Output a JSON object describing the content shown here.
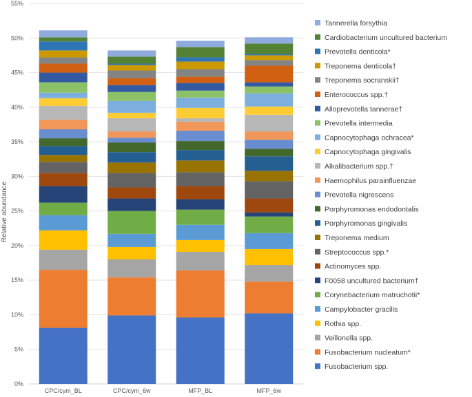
{
  "chart_data": {
    "type": "stacked_bar",
    "ylabel": "Relative abundance",
    "ylim": [
      0,
      55
    ],
    "yticks": [
      0,
      5,
      10,
      15,
      20,
      25,
      30,
      35,
      40,
      45,
      50,
      55
    ],
    "ytick_labels": [
      "0%",
      "5%",
      "10%",
      "15%",
      "20%",
      "25%",
      "30%",
      "35%",
      "40%",
      "45%",
      "50%",
      "55%"
    ],
    "categories": [
      "CPC/cym_BL",
      "CPC/cym_6w",
      "MFP_BL",
      "MFP_6w"
    ],
    "series": [
      {
        "name": "Fusobacterium spp.",
        "color": "#4472C4",
        "values": [
          8.1,
          9.9,
          9.6,
          10.2
        ]
      },
      {
        "name": "Fusobacterium nucleatum*",
        "color": "#ED7D31",
        "values": [
          8.4,
          5.5,
          6.8,
          4.6
        ]
      },
      {
        "name": "Veillonella spp.",
        "color": "#A5A5A5",
        "values": [
          2.9,
          2.6,
          2.7,
          2.4
        ]
      },
      {
        "name": "Rothia spp.",
        "color": "#FFC000",
        "values": [
          2.8,
          1.8,
          1.7,
          2.3
        ]
      },
      {
        "name": "Campylobacter gracilis",
        "color": "#5B9BD5",
        "values": [
          2.2,
          1.9,
          2.2,
          2.3
        ]
      },
      {
        "name": "Corynebacterium matruchotii*",
        "color": "#70AD47",
        "values": [
          1.8,
          3.3,
          2.2,
          2.4
        ]
      },
      {
        "name": "F0058 uncultured bacterium†",
        "color": "#264478",
        "values": [
          2.4,
          1.8,
          1.5,
          0.6
        ]
      },
      {
        "name": "Actinomyces spp.",
        "color": "#9E480E",
        "values": [
          1.9,
          1.6,
          1.9,
          2.0
        ]
      },
      {
        "name": "Streptococcus spp.*",
        "color": "#636363",
        "values": [
          1.6,
          2.1,
          2.0,
          2.5
        ]
      },
      {
        "name": "Treponema medium",
        "color": "#997300",
        "values": [
          1.0,
          1.5,
          1.7,
          1.5
        ]
      },
      {
        "name": "Porphyromonas gingivalis",
        "color": "#255E91",
        "values": [
          1.3,
          1.5,
          1.5,
          2.1
        ]
      },
      {
        "name": "Porphyromonas endodontalis",
        "color": "#43682B",
        "values": [
          1.1,
          1.4,
          1.3,
          1.1
        ]
      },
      {
        "name": "Prevotella nigrescens",
        "color": "#698ED0",
        "values": [
          1.3,
          0.7,
          1.5,
          1.3
        ]
      },
      {
        "name": "Haemophilus parainfluenzae",
        "color": "#F1975A",
        "values": [
          1.4,
          0.9,
          1.3,
          1.2
        ]
      },
      {
        "name": "Alkalibacterium spp.†",
        "color": "#B7B7B7",
        "values": [
          2.0,
          1.9,
          0.5,
          2.4
        ]
      },
      {
        "name": "Capnocytophaga gingivalis",
        "color": "#FFCD33",
        "values": [
          1.1,
          0.8,
          1.5,
          1.2
        ]
      },
      {
        "name": "Capnocytophaga ochracea*",
        "color": "#7CAFDD",
        "values": [
          0.8,
          1.7,
          1.5,
          1.9
        ]
      },
      {
        "name": "Prevotella intermedia",
        "color": "#8CC168",
        "values": [
          1.5,
          1.3,
          1.0,
          1.0
        ]
      },
      {
        "name": "Alloprevotella tannerae†",
        "color": "#335AA1",
        "values": [
          1.4,
          1.0,
          1.1,
          0.6
        ]
      },
      {
        "name": "Enterococcus spp.†",
        "color": "#D26012",
        "values": [
          1.3,
          1.0,
          0.9,
          2.4
        ]
      },
      {
        "name": "Treponema socranskii†",
        "color": "#848484",
        "values": [
          0.9,
          1.1,
          1.1,
          0.8
        ]
      },
      {
        "name": "Treponema denticola†",
        "color": "#CC9A00",
        "values": [
          1.0,
          0.8,
          1.1,
          0.7
        ]
      },
      {
        "name": "Prevotella denticola*",
        "color": "#2E75B6",
        "values": [
          1.3,
          0.2,
          0.6,
          0.2
        ]
      },
      {
        "name": "Cardiobacterium uncultured bacterium",
        "color": "#548235",
        "values": [
          0.6,
          1.0,
          1.5,
          1.5
        ]
      },
      {
        "name": "Tannerella forsythia",
        "color": "#8FAADC",
        "values": [
          1.0,
          0.9,
          0.9,
          0.9
        ]
      }
    ]
  }
}
